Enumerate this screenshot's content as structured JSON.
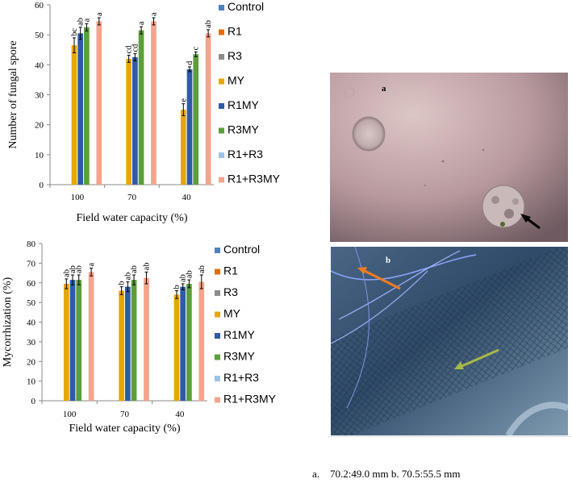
{
  "colors": {
    "Control": "#4f81bd",
    "R1": "#e46c0a",
    "R3": "#8c8c8c",
    "MY": "#e6a800",
    "R1MY": "#2e5aa8",
    "R3MY": "#5c9e3c",
    "R1+R3": "#9dc3e6",
    "R1+R3MY": "#f4a48c"
  },
  "chart_data": [
    {
      "type": "bar",
      "title": "",
      "xlabel": "Field water capacity (%)",
      "ylabel": "Number of fungal spore",
      "ylim": [
        0,
        60
      ],
      "yticks": [
        0,
        10,
        20,
        30,
        40,
        50,
        60
      ],
      "categories": [
        "100",
        "70",
        "40"
      ],
      "legend_position": "right",
      "series": [
        {
          "name": "Control",
          "values": [
            0,
            0,
            0
          ],
          "errors": [
            0,
            0,
            0
          ],
          "letters": [
            "",
            "",
            ""
          ]
        },
        {
          "name": "R1",
          "values": [
            0,
            0,
            0
          ],
          "errors": [
            0,
            0,
            0
          ],
          "letters": [
            "",
            "",
            ""
          ]
        },
        {
          "name": "R3",
          "values": [
            0,
            0,
            0
          ],
          "errors": [
            0,
            0,
            0
          ],
          "letters": [
            "",
            "",
            ""
          ]
        },
        {
          "name": "MY",
          "values": [
            46.5,
            42,
            25
          ],
          "errors": [
            2.5,
            1.2,
            2.0
          ],
          "letters": [
            "bc",
            "cd",
            "e"
          ]
        },
        {
          "name": "R1MY",
          "values": [
            50.5,
            42.5,
            38.5
          ],
          "errors": [
            2.0,
            1.2,
            0.8
          ],
          "letters": [
            "ab",
            "cd",
            "d"
          ]
        },
        {
          "name": "R3MY",
          "values": [
            52.5,
            51.5,
            43.5
          ],
          "errors": [
            1.2,
            1.2,
            0.8
          ],
          "letters": [
            "a",
            "a",
            "c"
          ]
        },
        {
          "name": "R1+R3",
          "values": [
            0,
            0,
            0
          ],
          "errors": [
            0,
            0,
            0
          ],
          "letters": [
            "",
            "",
            ""
          ]
        },
        {
          "name": "R1+R3MY",
          "values": [
            54.5,
            54.5,
            50.5
          ],
          "errors": [
            1.2,
            1.2,
            1.2
          ],
          "letters": [
            "a",
            "a",
            "ab"
          ]
        }
      ]
    },
    {
      "type": "bar",
      "title": "",
      "xlabel": "Field water capacity (%)",
      "ylabel": "Mycorrhization (%)",
      "ylim": [
        0,
        80
      ],
      "yticks": [
        0,
        10,
        20,
        30,
        40,
        50,
        60,
        70,
        80
      ],
      "categories": [
        "100",
        "70",
        "40"
      ],
      "legend_position": "right",
      "series": [
        {
          "name": "Control",
          "values": [
            0,
            0,
            0
          ],
          "errors": [
            0,
            0,
            0
          ],
          "letters": [
            "",
            "",
            ""
          ]
        },
        {
          "name": "R1",
          "values": [
            0,
            0,
            0
          ],
          "errors": [
            0,
            0,
            0
          ],
          "letters": [
            "",
            "",
            ""
          ]
        },
        {
          "name": "R3",
          "values": [
            0,
            0,
            0
          ],
          "errors": [
            0,
            0,
            0
          ],
          "letters": [
            "",
            "",
            ""
          ]
        },
        {
          "name": "MY",
          "values": [
            59.5,
            56,
            54
          ],
          "errors": [
            2.5,
            2.0,
            2.0
          ],
          "letters": [
            "ab",
            "b",
            "b"
          ]
        },
        {
          "name": "R1MY",
          "values": [
            61.5,
            58,
            58
          ],
          "errors": [
            2.5,
            2.5,
            1.5
          ],
          "letters": [
            "ab",
            "ab",
            "ab"
          ]
        },
        {
          "name": "R3MY",
          "values": [
            61.5,
            61.5,
            59.5
          ],
          "errors": [
            2.5,
            2.5,
            2.0
          ],
          "letters": [
            "ab",
            "ab",
            "ab"
          ]
        },
        {
          "name": "R1+R3",
          "values": [
            0,
            0,
            0
          ],
          "errors": [
            0,
            0,
            0
          ],
          "letters": [
            "",
            "",
            ""
          ]
        },
        {
          "name": "R1+R3MY",
          "values": [
            65.5,
            62.5,
            60.5
          ],
          "errors": [
            2.0,
            3.0,
            3.5
          ],
          "letters": [
            "a",
            "ab",
            "ab"
          ]
        }
      ]
    }
  ],
  "photos": {
    "a": {
      "panel_label": "a"
    },
    "b": {
      "panel_label": "b"
    }
  },
  "caption": "a.    70.2:49.0 mm b. 70.5:55.5 mm"
}
